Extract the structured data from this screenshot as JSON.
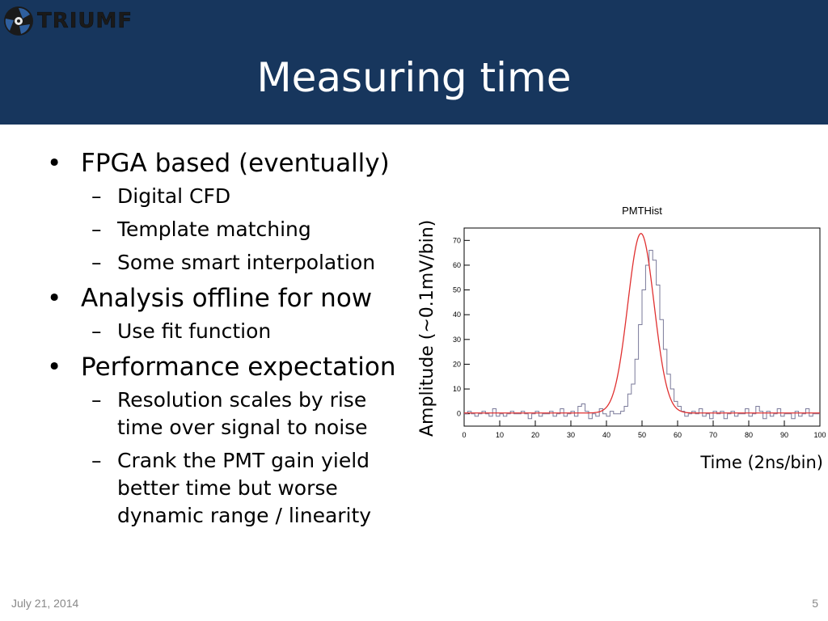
{
  "logo": {
    "text": "TRIUMF"
  },
  "title": "Measuring time",
  "bullets": [
    {
      "text": "FPGA based (eventually)",
      "sub": [
        "Digital CFD",
        "Template matching",
        "Some smart interpolation"
      ]
    },
    {
      "text": "Analysis offline for now",
      "sub": [
        "Use fit function"
      ]
    },
    {
      "text": "Performance expectation",
      "sub": [
        "Resolution scales by rise time over signal to noise",
        "Crank the PMT gain yield better time but worse dynamic range / linearity"
      ]
    }
  ],
  "footer": {
    "date": "July 21, 2014",
    "page": "5"
  },
  "chart_data": {
    "type": "line",
    "title": "PMTHist",
    "xlabel": "Time (2ns/bin)",
    "ylabel": "Amplitude (~0.1mV/bin)",
    "xlim": [
      0,
      100
    ],
    "ylim": [
      -5,
      75
    ],
    "xticks": [
      0,
      10,
      20,
      30,
      40,
      50,
      60,
      70,
      80,
      90,
      100
    ],
    "yticks": [
      0,
      10,
      20,
      30,
      40,
      50,
      60,
      70
    ],
    "series": [
      {
        "style": "histogram",
        "color": "#7a7a9a",
        "values": [
          0,
          1,
          0,
          -1,
          0,
          1,
          0,
          -1,
          2,
          -1,
          0,
          -1,
          0,
          1,
          0,
          0,
          1,
          0,
          -2,
          0,
          1,
          -1,
          0,
          0,
          1,
          -1,
          0,
          2,
          -1,
          0,
          1,
          -1,
          3,
          4,
          1,
          -2,
          0,
          -1,
          2,
          0,
          -1,
          1,
          0,
          0,
          1,
          3,
          8,
          12,
          22,
          36,
          50,
          60,
          66,
          62,
          52,
          38,
          26,
          16,
          10,
          5,
          3,
          1,
          -1,
          0,
          1,
          0,
          2,
          -1,
          0,
          -2,
          1,
          0,
          1,
          -2,
          0,
          1,
          -1,
          0,
          0,
          2,
          -1,
          0,
          3,
          1,
          -2,
          1,
          -1,
          0,
          2,
          -1,
          0,
          0,
          -2,
          1,
          -1,
          0,
          2,
          -1,
          0,
          0
        ]
      },
      {
        "style": "fit",
        "color": "#e03030",
        "amplitude": 72.5,
        "mean": 49.7,
        "sigma": 3.7,
        "baseline": 0.3
      }
    ]
  },
  "colors": {
    "header": "#17365d",
    "fit": "#e03030",
    "hist": "#7a7a9a"
  }
}
